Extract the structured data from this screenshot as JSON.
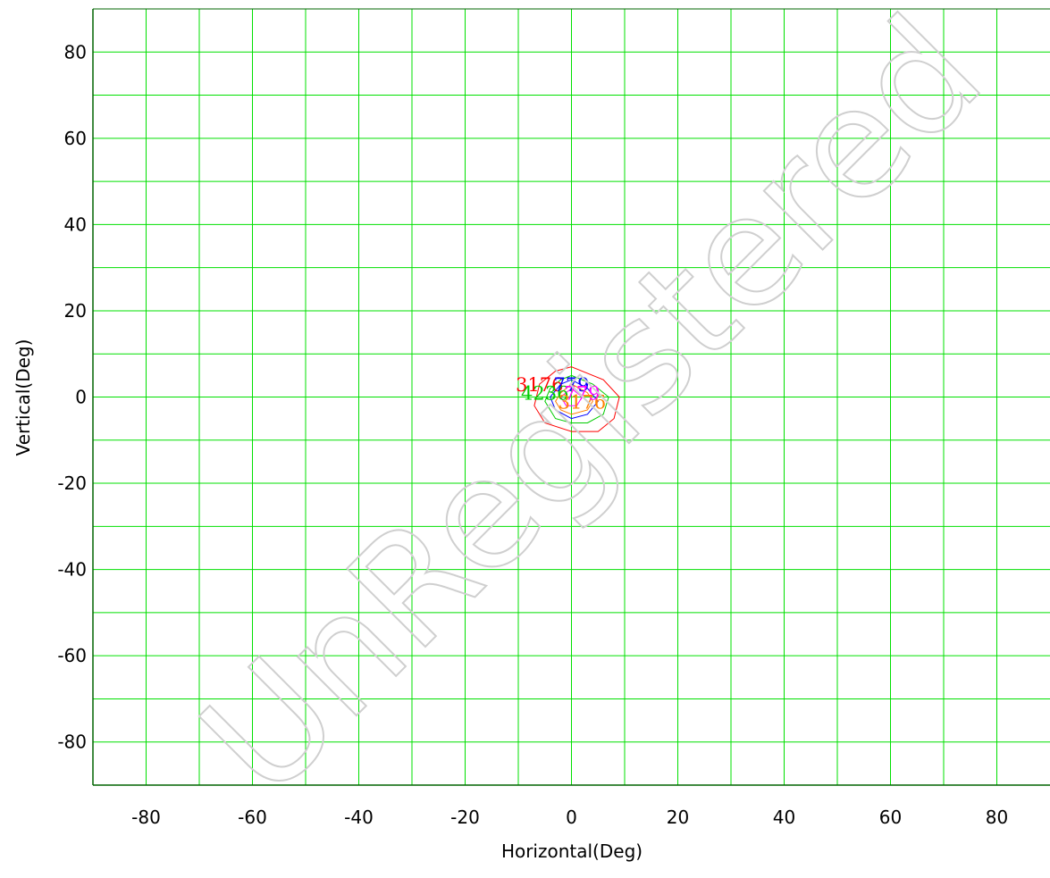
{
  "chart_data": {
    "type": "contour",
    "xlabel": "Horizontal(Deg)",
    "ylabel": "Vertical(Deg)",
    "xlim": [
      -90,
      90
    ],
    "ylim": [
      -90,
      90
    ],
    "xticks": [
      -80,
      -60,
      -40,
      -20,
      0,
      20,
      40,
      60,
      80
    ],
    "yticks": [
      80,
      60,
      40,
      20,
      0,
      -20,
      -40,
      -60,
      -80
    ],
    "grid": true,
    "grid_step": 10,
    "grid_color": "#00e000",
    "contours": [
      {
        "label": "3176",
        "color": "#ff0000",
        "points": [
          [
            0,
            7
          ],
          [
            6,
            4
          ],
          [
            9,
            0
          ],
          [
            8,
            -5
          ],
          [
            5,
            -8
          ],
          [
            0,
            -8
          ],
          [
            -5,
            -6
          ],
          [
            -7,
            -2
          ],
          [
            -6,
            3
          ],
          [
            -3,
            6
          ]
        ],
        "label_at": [
          -6,
          3
        ]
      },
      {
        "label": "4236",
        "color": "#00cc00",
        "points": [
          [
            0,
            5
          ],
          [
            4,
            3
          ],
          [
            7,
            0
          ],
          [
            6,
            -4
          ],
          [
            3,
            -6
          ],
          [
            0,
            -6
          ],
          [
            -3,
            -5
          ],
          [
            -5,
            -1
          ],
          [
            -4,
            2
          ],
          [
            -2,
            4
          ]
        ],
        "label_at": [
          -5,
          1
        ]
      },
      {
        "label": "3176",
        "color": "#ff8000",
        "points": [
          [
            0,
            3
          ],
          [
            3,
            1
          ],
          [
            4,
            -1
          ],
          [
            3,
            -3
          ],
          [
            0,
            -4
          ],
          [
            -2,
            -3
          ],
          [
            -3,
            -1
          ],
          [
            -2,
            1
          ]
        ],
        "label_at": [
          2,
          -1
        ]
      },
      {
        "label": "779",
        "color": "#0000ff",
        "points": [
          [
            0,
            4
          ],
          [
            3,
            2
          ],
          [
            5,
            -1
          ],
          [
            3,
            -4
          ],
          [
            0,
            -5
          ],
          [
            -3,
            -3
          ],
          [
            -4,
            0
          ],
          [
            -2,
            3
          ]
        ],
        "label_at": [
          0,
          3
        ]
      },
      {
        "label": "779",
        "color": "#ff00ff",
        "points": [
          [
            0,
            2
          ],
          [
            2,
            0
          ],
          [
            1,
            -2
          ],
          [
            -1,
            -2
          ],
          [
            -2,
            0
          ]
        ],
        "label_at": [
          2,
          1
        ]
      }
    ]
  },
  "watermark": "UnRegistered",
  "colors": {
    "axis": "#006400",
    "grid": "#00e000",
    "background": "#ffffff"
  }
}
